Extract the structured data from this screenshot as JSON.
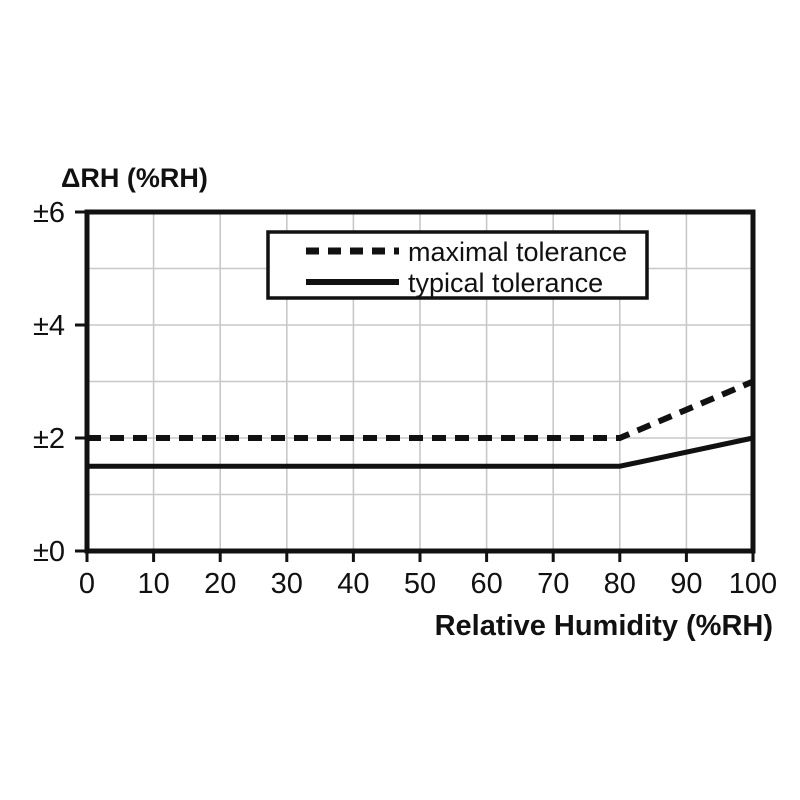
{
  "page": {
    "background": "#ffffff"
  },
  "chart_data": {
    "type": "line",
    "title": "ΔRH (%RH)",
    "xlabel": "Relative Humidity (%RH)",
    "ylabel": "ΔRH (%RH)",
    "xlim": [
      0,
      100
    ],
    "ylim": [
      0,
      6
    ],
    "x_ticks": [
      0,
      10,
      20,
      30,
      40,
      50,
      60,
      70,
      80,
      90,
      100
    ],
    "x_tick_labels": [
      "0",
      "10",
      "20",
      "30",
      "40",
      "50",
      "60",
      "70",
      "80",
      "90",
      "100"
    ],
    "y_ticks": [
      0,
      2,
      4,
      6
    ],
    "y_tick_labels": [
      "±0",
      "±2",
      "±4",
      "±6"
    ],
    "grid": {
      "on": true,
      "x_step": 10,
      "y_step": 1,
      "color": "#c8c8c8"
    },
    "axis_color": "#111111",
    "text_color": "#111111",
    "legend": {
      "position": "top-center",
      "border_color": "#111111",
      "background": "#ffffff"
    },
    "series": [
      {
        "name": "maximal tolerance",
        "style": "dashed",
        "color": "#111111",
        "points": [
          [
            0,
            2
          ],
          [
            80,
            2
          ],
          [
            100,
            3
          ]
        ]
      },
      {
        "name": "typical tolerance",
        "style": "solid",
        "color": "#111111",
        "points": [
          [
            0,
            1.5
          ],
          [
            80,
            1.5
          ],
          [
            100,
            2
          ]
        ]
      }
    ]
  }
}
